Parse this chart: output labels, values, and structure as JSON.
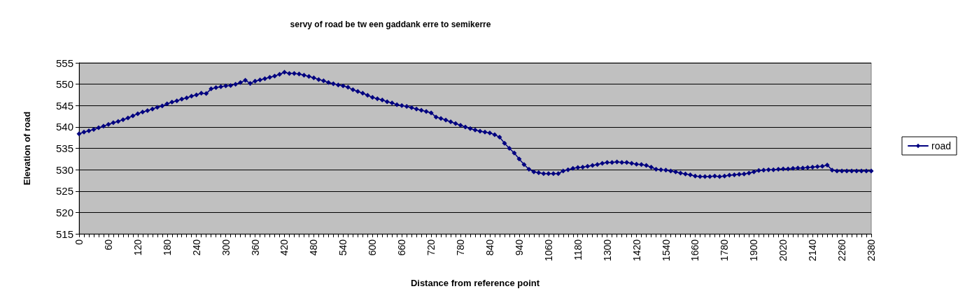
{
  "chart_data": {
    "type": "line",
    "title": "servy of road be tw een gaddank erre to semikerre",
    "xlabel": "Distance from reference point",
    "ylabel": "Elevation of road",
    "categories": [
      "0",
      null,
      null,
      null,
      null,
      null,
      "60",
      null,
      null,
      null,
      null,
      null,
      "120",
      null,
      null,
      null,
      null,
      null,
      "180",
      null,
      null,
      null,
      null,
      null,
      "240",
      null,
      null,
      null,
      null,
      null,
      "300",
      null,
      null,
      null,
      null,
      null,
      "360",
      null,
      null,
      null,
      null,
      null,
      "420",
      null,
      null,
      null,
      null,
      null,
      "480",
      null,
      null,
      null,
      null,
      null,
      "540",
      null,
      null,
      null,
      null,
      null,
      "600",
      null,
      null,
      null,
      null,
      null,
      "660",
      null,
      null,
      null,
      null,
      null,
      "720",
      null,
      null,
      null,
      null,
      null,
      "780",
      null,
      null,
      null,
      null,
      null,
      "840",
      null,
      null,
      null,
      null,
      null,
      "940",
      null,
      null,
      null,
      null,
      null,
      "1060",
      null,
      null,
      null,
      null,
      null,
      "1180",
      null,
      null,
      null,
      null,
      null,
      "1300",
      null,
      null,
      null,
      null,
      null,
      "1420",
      null,
      null,
      null,
      null,
      null,
      "1540",
      null,
      null,
      null,
      null,
      null,
      "1660",
      null,
      null,
      null,
      null,
      null,
      "1780",
      null,
      null,
      null,
      null,
      null,
      "1900",
      null,
      null,
      null,
      null,
      null,
      "2020",
      null,
      null,
      null,
      null,
      null,
      "2140",
      null,
      null,
      null,
      null,
      null,
      "2260",
      null,
      null,
      null,
      null,
      null,
      "2380"
    ],
    "series": [
      {
        "name": "road",
        "color": "#000080",
        "values": [
          538.4,
          538.8,
          539.1,
          539.4,
          539.8,
          540.2,
          540.6,
          541.0,
          541.3,
          541.7,
          542.1,
          542.6,
          543.1,
          543.5,
          543.8,
          544.2,
          544.6,
          544.9,
          545.4,
          545.8,
          546.1,
          546.5,
          546.8,
          547.2,
          547.5,
          547.9,
          547.8,
          548.9,
          549.2,
          549.4,
          549.6,
          549.7,
          550.0,
          550.4,
          550.9,
          550.2,
          550.7,
          551.0,
          551.3,
          551.6,
          551.9,
          552.3,
          552.8,
          552.5,
          552.5,
          552.4,
          552.1,
          551.8,
          551.5,
          551.1,
          550.8,
          550.4,
          550.1,
          549.8,
          549.6,
          549.3,
          548.7,
          548.3,
          547.9,
          547.4,
          546.9,
          546.6,
          546.3,
          545.9,
          545.6,
          545.2,
          545.0,
          544.8,
          544.5,
          544.2,
          543.9,
          543.6,
          543.3,
          542.3,
          542.0,
          541.6,
          541.2,
          540.8,
          540.4,
          540.0,
          539.6,
          539.3,
          539.0,
          538.8,
          538.6,
          538.2,
          537.6,
          536.2,
          535.0,
          533.9,
          532.5,
          531.2,
          530.1,
          529.5,
          529.3,
          529.1,
          529.1,
          529.1,
          529.1,
          529.7,
          530.0,
          530.3,
          530.5,
          530.6,
          530.8,
          531.0,
          531.2,
          531.5,
          531.7,
          531.7,
          531.8,
          531.7,
          531.7,
          531.5,
          531.3,
          531.2,
          531.0,
          530.6,
          530.1,
          530.0,
          529.9,
          529.7,
          529.5,
          529.2,
          529.0,
          528.8,
          528.5,
          528.4,
          528.4,
          528.4,
          528.5,
          528.4,
          528.5,
          528.7,
          528.8,
          528.9,
          529.0,
          529.2,
          529.5,
          529.8,
          529.9,
          530.0,
          530.0,
          530.1,
          530.2,
          530.2,
          530.3,
          530.4,
          530.4,
          530.5,
          530.6,
          530.7,
          530.8,
          531.1,
          529.9,
          529.7,
          529.7,
          529.7,
          529.7,
          529.7,
          529.7,
          529.7,
          529.7
        ]
      }
    ],
    "ylim": [
      515,
      555
    ],
    "yticks": [
      515,
      520,
      525,
      530,
      535,
      540,
      545,
      550,
      555
    ],
    "grid": "y",
    "legend": "right",
    "marker": "diamond",
    "line_style": "solid"
  }
}
